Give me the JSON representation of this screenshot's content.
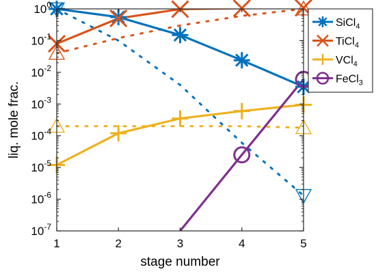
{
  "chart_data": {
    "type": "line",
    "xlabel": "stage number",
    "ylabel": "liq. mole frac.",
    "xlim": [
      1,
      5
    ],
    "ylim_log10": [
      -7,
      0
    ],
    "yscale": "log",
    "grid": false,
    "legend_position": "top-right",
    "x_ticks": [
      "1",
      "2",
      "3",
      "4",
      "5"
    ],
    "y_ticks": [
      {
        "base": "10",
        "exp": "0"
      },
      {
        "base": "10",
        "exp": "-1"
      },
      {
        "base": "10",
        "exp": "-2"
      },
      {
        "base": "10",
        "exp": "-3"
      },
      {
        "base": "10",
        "exp": "-4"
      },
      {
        "base": "10",
        "exp": "-5"
      },
      {
        "base": "10",
        "exp": "-6"
      },
      {
        "base": "10",
        "exp": "-7"
      }
    ],
    "series": [
      {
        "name": "SiCl",
        "sub": "4",
        "color": "#0072BD",
        "marker": "asterisk",
        "x": [
          1,
          2,
          3,
          4,
          5
        ],
        "y": [
          1.0,
          0.55,
          0.15,
          0.024,
          0.0035
        ]
      },
      {
        "name": "TiCl",
        "sub": "4",
        "color": "#D95319",
        "marker": "x",
        "x": [
          1,
          2,
          3,
          4,
          5
        ],
        "y": [
          0.08,
          0.5,
          0.98,
          1.05,
          1.08
        ]
      },
      {
        "name": "VCl",
        "sub": "4",
        "color": "#EDB120",
        "marker": "plus",
        "x": [
          1,
          2,
          3,
          4,
          5
        ],
        "y": [
          1.2e-05,
          0.00012,
          0.00035,
          0.0006,
          0.00095
        ]
      },
      {
        "name": "FeCl",
        "sub": "3",
        "color": "#7E2F8E",
        "marker": "circle",
        "x": [
          3,
          4,
          5
        ],
        "y": [
          1e-07,
          2.5e-05,
          0.006
        ]
      }
    ],
    "dotted_series": [
      {
        "color": "#0072BD",
        "marker": "triangle-down",
        "x": [
          1,
          2,
          3,
          4,
          5
        ],
        "y": [
          1.0,
          0.1,
          0.004,
          6e-05,
          1.3e-06
        ]
      },
      {
        "color": "#D95319",
        "marker": "triangle-up",
        "x": [
          1,
          2,
          3,
          4,
          5
        ],
        "y": [
          0.04,
          0.12,
          0.3,
          0.6,
          1.0
        ]
      },
      {
        "color": "#EDB120",
        "marker": "triangle",
        "x": [
          1,
          2,
          3,
          4,
          5
        ],
        "y": [
          0.0002,
          0.0002,
          0.0002,
          0.0002,
          0.00018
        ]
      }
    ]
  }
}
